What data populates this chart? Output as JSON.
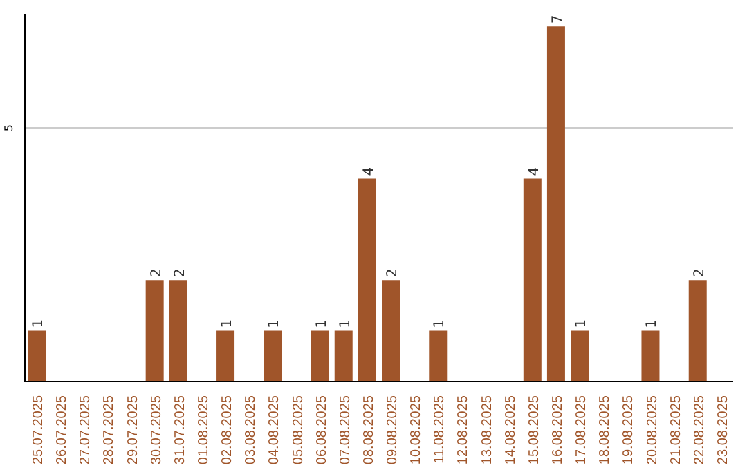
{
  "chart_data": {
    "type": "bar",
    "categories": [
      "25.07.2025",
      "26.07.2025",
      "27.07.2025",
      "28.07.2025",
      "29.07.2025",
      "30.07.2025",
      "31.07.2025",
      "01.08.2025",
      "02.08.2025",
      "03.08.2025",
      "04.08.2025",
      "05.08.2025",
      "06.08.2025",
      "07.08.2025",
      "08.08.2025",
      "09.08.2025",
      "10.08.2025",
      "11.08.2025",
      "12.08.2025",
      "13.08.2025",
      "14.08.2025",
      "15.08.2025",
      "16.08.2025",
      "17.08.2025",
      "18.08.2025",
      "19.08.2025",
      "20.08.2025",
      "21.08.2025",
      "22.08.2025",
      "23.08.2025"
    ],
    "values": [
      1,
      0,
      0,
      0,
      0,
      2,
      2,
      0,
      1,
      0,
      1,
      0,
      1,
      1,
      4,
      2,
      0,
      1,
      0,
      0,
      0,
      4,
      7,
      1,
      0,
      0,
      1,
      0,
      2,
      0
    ],
    "value_labels": [
      "1",
      null,
      null,
      null,
      null,
      "2",
      "2",
      null,
      "1",
      null,
      "1",
      null,
      "1",
      "1",
      "4",
      "2",
      null,
      "1",
      null,
      null,
      null,
      "4",
      "7",
      "1",
      null,
      null,
      "1",
      null,
      "2",
      null
    ],
    "color": "#a0552a",
    "ylim": [
      0,
      7.25
    ],
    "yticks": [
      5
    ],
    "grid": "y"
  }
}
